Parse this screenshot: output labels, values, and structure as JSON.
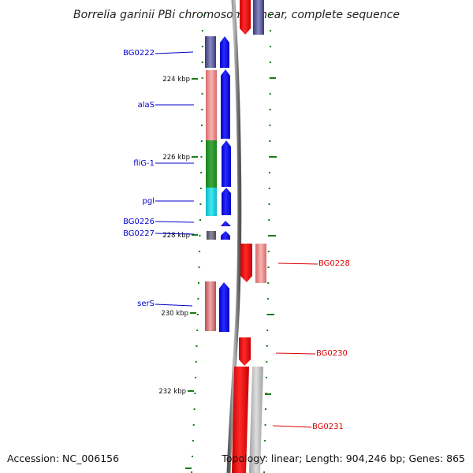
{
  "title": "Borrelia garinii PBi chromosome linear, complete sequence",
  "accession_text": "Accession: NC_006156",
  "summary_text": "Topology: linear; Length: 904,246 bp; Genes: 865",
  "colors": {
    "left_label": "#0000cc",
    "right_label": "#dd0000",
    "backbone": "#777777",
    "tick": "#1a7a1a",
    "forward_arrow": "#0000ee",
    "reverse_arrow": "#ee0000"
  },
  "tick_labels": [
    "224 kbp",
    "226 kbp",
    "228 kbp",
    "230 kbp",
    "232 kbp"
  ],
  "genes_left": [
    {
      "label": "BG0222",
      "feature": "slate"
    },
    {
      "label": "alaS",
      "feature": "pink"
    },
    {
      "label": "fliG-1",
      "feature": "green"
    },
    {
      "label": "pgl",
      "feature": "cyan"
    },
    {
      "label": "BG0226",
      "feature": "none"
    },
    {
      "label": "BG0227",
      "feature": "gray"
    },
    {
      "label": "serS",
      "feature": "pink"
    }
  ],
  "genes_right": [
    {
      "label": "BG0228",
      "feature": "pink"
    },
    {
      "label": "BG0230",
      "feature": "none"
    },
    {
      "label": "BG0231",
      "feature": "lightgray"
    }
  ]
}
